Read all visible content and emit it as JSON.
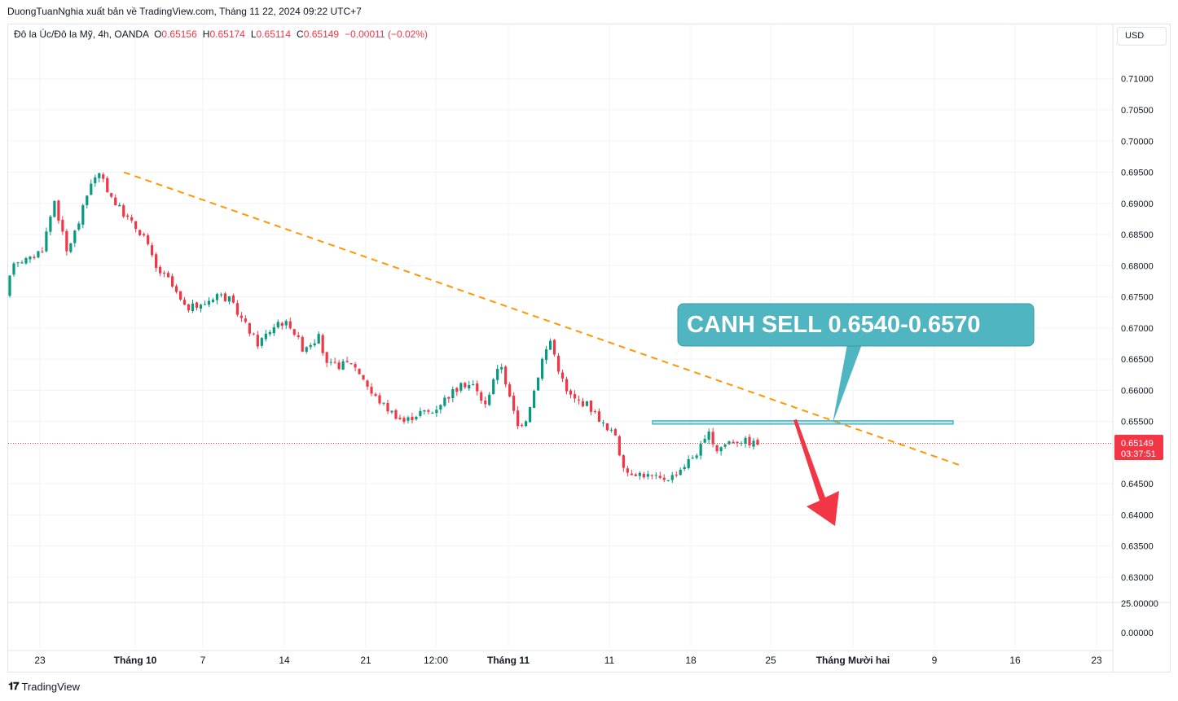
{
  "caption": "DuongTuanNghia xuất bản về TradingView.com, Tháng 11 22, 2024 09:22 UTC+7",
  "legend": {
    "symbol": "Đô la Úc/Đô la Mỹ, 4h, OANDA",
    "o_label": "O",
    "o_value": "0.65156",
    "h_label": "H",
    "h_value": "0.65174",
    "l_label": "L",
    "l_value": "0.65114",
    "c_label": "C",
    "c_value": "0.65149",
    "change": "−0.00011 (−0.02%)"
  },
  "currency": "USD",
  "branding": "TradingView",
  "colors": {
    "up": "#089981",
    "down": "#f23645",
    "trendline": "#ff9800",
    "callout": "#4fb5c1",
    "arrow": "#f23645",
    "price_tag": "#f23645"
  },
  "chart_data": {
    "type": "candlestick",
    "symbol": "Đô la Úc/Đô la Mỹ",
    "interval": "4h",
    "y_ticks": [
      "0.71000",
      "0.70500",
      "0.70000",
      "0.69500",
      "0.69000",
      "0.68500",
      "0.68000",
      "0.67500",
      "0.67000",
      "0.66500",
      "0.66000",
      "0.65500",
      "0.64500",
      "0.64000",
      "0.63500",
      "0.63000"
    ],
    "ylim": [
      0.6262,
      0.7148
    ],
    "y_axis_lower_pane_ticks": [
      "25.00000",
      "0.00000"
    ],
    "x_ticks": [
      "23",
      "Tháng 10",
      "7",
      "14",
      "21",
      "12:00",
      "Tháng 11",
      "11",
      "18",
      "25",
      "Tháng Mười hai",
      "9",
      "16",
      "23"
    ],
    "last_price": "0.65149",
    "countdown": "03:37:51",
    "price_path": [
      [
        0,
        0.675
      ],
      [
        2,
        0.6808
      ],
      [
        6,
        0.681
      ],
      [
        9,
        0.6828
      ],
      [
        12,
        0.6905
      ],
      [
        15,
        0.6822
      ],
      [
        18,
        0.687
      ],
      [
        21,
        0.6935
      ],
      [
        23,
        0.6945
      ],
      [
        27,
        0.69
      ],
      [
        31,
        0.6868
      ],
      [
        34,
        0.6848
      ],
      [
        37,
        0.6795
      ],
      [
        40,
        0.6778
      ],
      [
        44,
        0.6732
      ],
      [
        48,
        0.6735
      ],
      [
        52,
        0.6755
      ],
      [
        55,
        0.6745
      ],
      [
        59,
        0.6705
      ],
      [
        62,
        0.6675
      ],
      [
        67,
        0.671
      ],
      [
        70,
        0.6705
      ],
      [
        73,
        0.6668
      ],
      [
        77,
        0.6685
      ],
      [
        79,
        0.664
      ],
      [
        82,
        0.664
      ],
      [
        85,
        0.6645
      ],
      [
        88,
        0.662
      ],
      [
        90,
        0.6595
      ],
      [
        94,
        0.657
      ],
      [
        98,
        0.655
      ],
      [
        102,
        0.6565
      ],
      [
        105,
        0.6565
      ],
      [
        107,
        0.658
      ],
      [
        110,
        0.6598
      ],
      [
        113,
        0.661
      ],
      [
        115,
        0.6608
      ],
      [
        118,
        0.6575
      ],
      [
        120,
        0.662
      ],
      [
        122,
        0.664
      ],
      [
        124,
        0.6587
      ],
      [
        126,
        0.6542
      ],
      [
        128,
        0.6555
      ],
      [
        130,
        0.66
      ],
      [
        132,
        0.665
      ],
      [
        134,
        0.668
      ],
      [
        136,
        0.6635
      ],
      [
        138,
        0.6597
      ],
      [
        140,
        0.6585
      ],
      [
        143,
        0.6578
      ],
      [
        146,
        0.6555
      ],
      [
        148,
        0.6535
      ],
      [
        150,
        0.653
      ],
      [
        152,
        0.647
      ],
      [
        155,
        0.6468
      ],
      [
        158,
        0.6463
      ],
      [
        161,
        0.6457
      ],
      [
        164,
        0.6462
      ],
      [
        167,
        0.648
      ],
      [
        170,
        0.65
      ],
      [
        173,
        0.6528
      ],
      [
        175,
        0.6505
      ],
      [
        178,
        0.6518
      ],
      [
        181,
        0.652
      ],
      [
        184,
        0.6515
      ]
    ],
    "trendline": {
      "from": [
        "Tháng 10",
        0.695
      ],
      "to": [
        "9",
        0.6478
      ],
      "style": "dashed"
    },
    "resistance_zone": [
      0.6547,
      0.6551
    ],
    "annotation": "CANH SELL 0.6540-0.6570",
    "arrow": "down"
  }
}
